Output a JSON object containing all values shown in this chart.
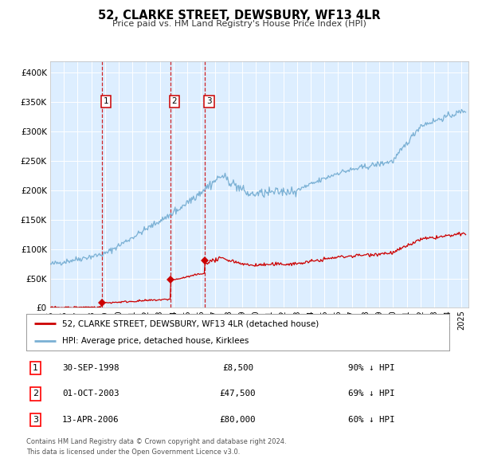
{
  "title": "52, CLARKE STREET, DEWSBURY, WF13 4LR",
  "subtitle": "Price paid vs. HM Land Registry's House Price Index (HPI)",
  "legend_line1": "52, CLARKE STREET, DEWSBURY, WF13 4LR (detached house)",
  "legend_line2": "HPI: Average price, detached house, Kirklees",
  "footer_line1": "Contains HM Land Registry data © Crown copyright and database right 2024.",
  "footer_line2": "This data is licensed under the Open Government Licence v3.0.",
  "transactions": [
    {
      "num": 1,
      "date": "30-SEP-1998",
      "price": 8500,
      "hpi_pct": "90% ↓ HPI",
      "year": 1998.75
    },
    {
      "num": 2,
      "date": "01-OCT-2003",
      "price": 47500,
      "hpi_pct": "69% ↓ HPI",
      "year": 2003.75
    },
    {
      "num": 3,
      "date": "13-APR-2006",
      "price": 80000,
      "hpi_pct": "60% ↓ HPI",
      "year": 2006.28
    }
  ],
  "hpi_color": "#7ab0d4",
  "price_color": "#cc0000",
  "vline_color": "#cc0000",
  "plot_bg": "#ddeeff",
  "grid_color": "#ffffff",
  "ylim": [
    0,
    420000
  ],
  "xlim_start": 1995,
  "xlim_end": 2025.5,
  "yticks": [
    0,
    50000,
    100000,
    150000,
    200000,
    250000,
    300000,
    350000,
    400000
  ]
}
